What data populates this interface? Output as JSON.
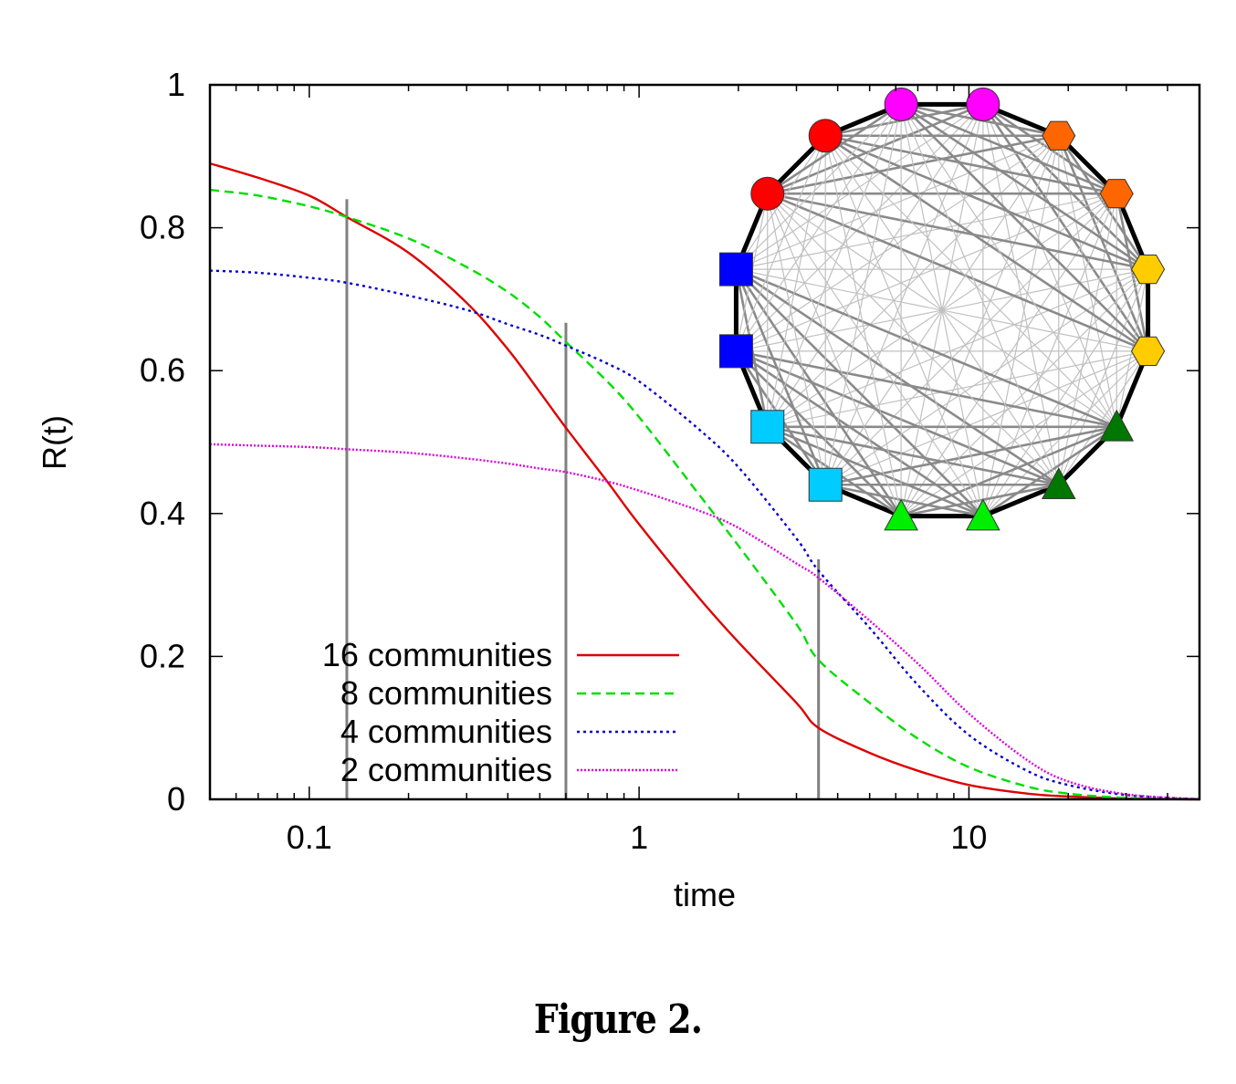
{
  "caption": "Figure 2.",
  "chart_data": {
    "type": "line",
    "xlabel": "time",
    "ylabel": "R(t)",
    "xscale": "log",
    "xlim": [
      0.05,
      50
    ],
    "ylim": [
      0,
      1
    ],
    "xticks": [
      {
        "value": 0.1,
        "label": "0.1"
      },
      {
        "value": 1,
        "label": "1"
      },
      {
        "value": 10,
        "label": "10"
      }
    ],
    "yticks": [
      {
        "value": 0,
        "label": "0"
      },
      {
        "value": 0.2,
        "label": "0.2"
      },
      {
        "value": 0.4,
        "label": "0.4"
      },
      {
        "value": 0.6,
        "label": "0.6"
      },
      {
        "value": 0.8,
        "label": "0.8"
      },
      {
        "value": 1,
        "label": "1"
      }
    ],
    "legend_position": "bottom-left",
    "series": [
      {
        "name": "16 communities",
        "color": "#dd0000",
        "dash": "solid",
        "x": [
          0.05,
          0.07,
          0.1,
          0.13,
          0.2,
          0.3,
          0.4,
          0.5,
          0.6,
          0.8,
          1,
          1.5,
          2,
          3,
          3.5,
          5,
          7,
          10,
          15,
          20,
          30,
          50
        ],
        "y": [
          0.89,
          0.87,
          0.845,
          0.815,
          0.765,
          0.695,
          0.63,
          0.57,
          0.52,
          0.445,
          0.385,
          0.285,
          0.22,
          0.135,
          0.1,
          0.065,
          0.04,
          0.02,
          0.008,
          0.004,
          0.001,
          0.0
        ]
      },
      {
        "name": "8 communities",
        "color": "#00dd00",
        "dash": "dashed",
        "x": [
          0.05,
          0.07,
          0.1,
          0.13,
          0.2,
          0.3,
          0.4,
          0.5,
          0.6,
          0.8,
          1,
          1.5,
          2,
          3,
          3.5,
          5,
          7,
          10,
          15,
          20,
          30,
          50
        ],
        "y": [
          0.853,
          0.845,
          0.83,
          0.815,
          0.785,
          0.745,
          0.71,
          0.675,
          0.64,
          0.585,
          0.535,
          0.43,
          0.355,
          0.245,
          0.195,
          0.135,
          0.085,
          0.045,
          0.018,
          0.008,
          0.002,
          0.0
        ]
      },
      {
        "name": "4 communities",
        "color": "#0000cc",
        "dash": "dotted",
        "x": [
          0.05,
          0.07,
          0.1,
          0.13,
          0.2,
          0.3,
          0.4,
          0.5,
          0.6,
          0.8,
          1,
          1.5,
          2,
          3,
          3.5,
          5,
          7,
          10,
          15,
          20,
          30,
          50
        ],
        "y": [
          0.74,
          0.737,
          0.73,
          0.723,
          0.705,
          0.685,
          0.665,
          0.65,
          0.635,
          0.61,
          0.585,
          0.52,
          0.465,
          0.365,
          0.32,
          0.24,
          0.16,
          0.09,
          0.04,
          0.02,
          0.006,
          0.0
        ]
      },
      {
        "name": "2 communities",
        "color": "#dd00dd",
        "dash": "dotted-fine",
        "x": [
          0.05,
          0.07,
          0.1,
          0.13,
          0.2,
          0.3,
          0.4,
          0.5,
          0.6,
          0.8,
          1,
          1.5,
          2,
          3,
          3.5,
          5,
          7,
          10,
          15,
          20,
          30,
          50
        ],
        "y": [
          0.497,
          0.495,
          0.493,
          0.49,
          0.485,
          0.477,
          0.47,
          0.463,
          0.458,
          0.445,
          0.432,
          0.405,
          0.38,
          0.33,
          0.31,
          0.25,
          0.19,
          0.12,
          0.055,
          0.025,
          0.007,
          0.0
        ]
      }
    ],
    "vertical_markers": [
      {
        "x": 0.13,
        "y_top": 0.84,
        "color": "#808080"
      },
      {
        "x": 0.6,
        "y_top": 0.667,
        "color": "#808080"
      },
      {
        "x": 3.5,
        "y_top": 0.336,
        "color": "#808080"
      }
    ]
  },
  "inset_network": {
    "nodes": [
      {
        "shape": "circle",
        "color": "#ff00ff",
        "pair": 0,
        "group": "A"
      },
      {
        "shape": "hexagon",
        "color": "#ff6600",
        "pair": 1,
        "group": "A"
      },
      {
        "shape": "hexagon",
        "color": "#ff6600",
        "pair": 1,
        "group": "A"
      },
      {
        "shape": "hexagon",
        "color": "#ffcc00",
        "pair": 2,
        "group": "A"
      },
      {
        "shape": "hexagon",
        "color": "#ffcc00",
        "pair": 2,
        "group": "A"
      },
      {
        "shape": "triangle",
        "color": "#007700",
        "pair": 3,
        "group": "B"
      },
      {
        "shape": "triangle",
        "color": "#007700",
        "pair": 3,
        "group": "B"
      },
      {
        "shape": "triangle",
        "color": "#00ee00",
        "pair": 4,
        "group": "B"
      },
      {
        "shape": "triangle",
        "color": "#00ee00",
        "pair": 4,
        "group": "B"
      },
      {
        "shape": "square",
        "color": "#00ccff",
        "pair": 5,
        "group": "B"
      },
      {
        "shape": "square",
        "color": "#00ccff",
        "pair": 5,
        "group": "B"
      },
      {
        "shape": "square",
        "color": "#0000ff",
        "pair": 6,
        "group": "B"
      },
      {
        "shape": "square",
        "color": "#0000ff",
        "pair": 6,
        "group": "B"
      },
      {
        "shape": "circle",
        "color": "#ff0000",
        "pair": 7,
        "group": "A"
      },
      {
        "shape": "circle",
        "color": "#ff0000",
        "pair": 7,
        "group": "A"
      },
      {
        "shape": "circle",
        "color": "#ff00ff",
        "pair": 0,
        "group": "A"
      }
    ]
  }
}
